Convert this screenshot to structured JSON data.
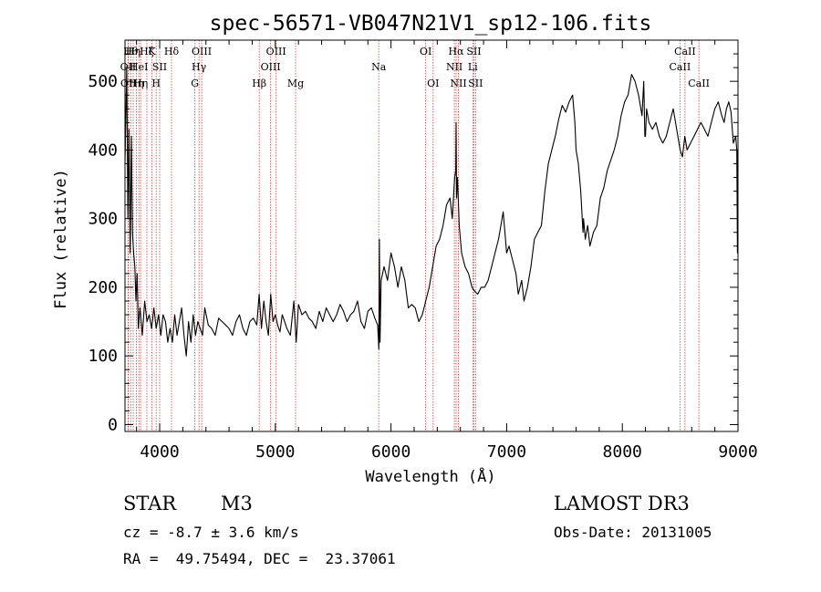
{
  "chart_data": {
    "type": "line",
    "title": "spec-56571-VB047N21V1_sp12-106.fits",
    "xlabel": "Wavelength (Å)",
    "ylabel": "Flux (relative)",
    "xlim": [
      3700,
      9000
    ],
    "ylim": [
      -10,
      560
    ],
    "xticks": [
      4000,
      5000,
      6000,
      7000,
      8000,
      9000
    ],
    "yticks": [
      0,
      100,
      200,
      300,
      400,
      500
    ],
    "series": [
      {
        "name": "flux",
        "x": [
          3700,
          3715,
          3725,
          3735,
          3745,
          3755,
          3765,
          3775,
          3785,
          3795,
          3805,
          3815,
          3830,
          3850,
          3870,
          3890,
          3910,
          3930,
          3950,
          3970,
          3990,
          4010,
          4030,
          4050,
          4070,
          4090,
          4110,
          4130,
          4150,
          4170,
          4190,
          4210,
          4230,
          4250,
          4270,
          4290,
          4310,
          4330,
          4350,
          4370,
          4390,
          4420,
          4450,
          4480,
          4510,
          4540,
          4570,
          4600,
          4630,
          4660,
          4690,
          4720,
          4750,
          4780,
          4810,
          4840,
          4860,
          4880,
          4900,
          4920,
          4940,
          4960,
          4980,
          5000,
          5020,
          5040,
          5060,
          5080,
          5100,
          5130,
          5160,
          5180,
          5200,
          5230,
          5260,
          5290,
          5320,
          5350,
          5380,
          5410,
          5440,
          5470,
          5500,
          5530,
          5560,
          5590,
          5620,
          5650,
          5680,
          5710,
          5740,
          5770,
          5800,
          5830,
          5860,
          5885,
          5895,
          5900,
          5905,
          5915,
          5940,
          5970,
          6000,
          6030,
          6060,
          6090,
          6120,
          6150,
          6180,
          6210,
          6240,
          6270,
          6300,
          6330,
          6360,
          6390,
          6420,
          6450,
          6480,
          6510,
          6530,
          6550,
          6560,
          6563,
          6567,
          6575,
          6590,
          6610,
          6640,
          6670,
          6700,
          6720,
          6750,
          6780,
          6810,
          6840,
          6870,
          6900,
          6930,
          6950,
          6970,
          7000,
          7020,
          7050,
          7080,
          7100,
          7130,
          7150,
          7180,
          7210,
          7240,
          7270,
          7300,
          7330,
          7360,
          7390,
          7420,
          7450,
          7480,
          7510,
          7540,
          7570,
          7590,
          7600,
          7620,
          7640,
          7660,
          7665,
          7680,
          7700,
          7720,
          7750,
          7780,
          7810,
          7840,
          7870,
          7900,
          7930,
          7960,
          7990,
          8020,
          8050,
          8080,
          8110,
          8140,
          8170,
          8185,
          8195,
          8200,
          8210,
          8230,
          8260,
          8290,
          8320,
          8350,
          8380,
          8410,
          8440,
          8470,
          8500,
          8520,
          8540,
          8560,
          8590,
          8620,
          8650,
          8680,
          8710,
          8740,
          8770,
          8800,
          8830,
          8860,
          8880,
          8900,
          8920,
          8940,
          8960,
          8980,
          8990,
          8995,
          8998
        ],
        "y": [
          380,
          520,
          300,
          430,
          250,
          420,
          280,
          250,
          230,
          180,
          220,
          140,
          170,
          130,
          180,
          150,
          160,
          140,
          170,
          140,
          160,
          130,
          160,
          150,
          120,
          140,
          120,
          160,
          130,
          150,
          170,
          130,
          100,
          150,
          120,
          160,
          130,
          150,
          140,
          130,
          170,
          145,
          140,
          130,
          155,
          150,
          145,
          140,
          130,
          150,
          160,
          140,
          130,
          150,
          155,
          145,
          190,
          140,
          180,
          150,
          130,
          190,
          150,
          160,
          145,
          135,
          160,
          150,
          140,
          130,
          180,
          120,
          175,
          160,
          165,
          155,
          150,
          140,
          165,
          150,
          170,
          160,
          150,
          160,
          175,
          165,
          150,
          160,
          165,
          180,
          150,
          140,
          165,
          170,
          155,
          145,
          110,
          270,
          120,
          210,
          230,
          210,
          250,
          230,
          200,
          230,
          210,
          170,
          175,
          170,
          150,
          160,
          180,
          200,
          230,
          260,
          270,
          290,
          320,
          330,
          300,
          360,
          370,
          440,
          330,
          360,
          290,
          250,
          230,
          220,
          200,
          195,
          190,
          200,
          200,
          210,
          230,
          250,
          270,
          290,
          310,
          250,
          260,
          240,
          220,
          190,
          210,
          180,
          200,
          230,
          270,
          280,
          290,
          340,
          380,
          400,
          420,
          445,
          465,
          455,
          470,
          480,
          440,
          400,
          380,
          340,
          280,
          300,
          270,
          290,
          260,
          280,
          290,
          330,
          345,
          370,
          385,
          400,
          420,
          450,
          470,
          480,
          510,
          500,
          480,
          450,
          500,
          420,
          420,
          460,
          440,
          430,
          440,
          420,
          410,
          420,
          440,
          460,
          430,
          400,
          390,
          420,
          400,
          410,
          420,
          430,
          440,
          430,
          420,
          440,
          460,
          470,
          450,
          440,
          460,
          470,
          455,
          410,
          420,
          400,
          250,
          400
        ]
      }
    ],
    "lines": [
      {
        "x": 3727,
        "label": "OII",
        "row": 1
      },
      {
        "x": 3730,
        "label": "OII",
        "row": 2
      },
      {
        "x": 3750,
        "label": "Hθ",
        "row": 0
      },
      {
        "x": 3771,
        "label": "Hη",
        "row": 0
      },
      {
        "x": 3798,
        "label": "Hη",
        "row": 2
      },
      {
        "x": 3820,
        "label": "HeI",
        "row": 1
      },
      {
        "x": 3835,
        "label": "Hη",
        "row": 2
      },
      {
        "x": 3889,
        "label": "Hζ",
        "row": 0
      },
      {
        "x": 3934,
        "label": "K",
        "row": 0
      },
      {
        "x": 3970,
        "label": "H",
        "row": 2
      },
      {
        "x": 4000,
        "label": "SII",
        "row": 1
      },
      {
        "x": 4102,
        "label": "Hδ",
        "row": 0
      },
      {
        "x": 4305,
        "label": "G",
        "row": 2
      },
      {
        "x": 4340,
        "label": "Hγ",
        "row": 1
      },
      {
        "x": 4363,
        "label": "OIII",
        "row": 0
      },
      {
        "x": 4861,
        "label": "Hβ",
        "row": 2
      },
      {
        "x": 4959,
        "label": "OIII",
        "row": 1
      },
      {
        "x": 5007,
        "label": "OIII",
        "row": 0
      },
      {
        "x": 5175,
        "label": "Mg",
        "row": 2
      },
      {
        "x": 5894,
        "label": "Na",
        "row": 1
      },
      {
        "x": 6300,
        "label": "OI",
        "row": 0
      },
      {
        "x": 6364,
        "label": "OI",
        "row": 2
      },
      {
        "x": 6548,
        "label": "NII",
        "row": 1
      },
      {
        "x": 6563,
        "label": "Hα",
        "row": 0
      },
      {
        "x": 6583,
        "label": "NII",
        "row": 2
      },
      {
        "x": 6707,
        "label": "Li",
        "row": 1
      },
      {
        "x": 6717,
        "label": "SII",
        "row": 0
      },
      {
        "x": 6731,
        "label": "SII",
        "row": 2
      },
      {
        "x": 8498,
        "label": "CaII",
        "row": 1
      },
      {
        "x": 8542,
        "label": "CaII",
        "row": 0
      },
      {
        "x": 8662,
        "label": "CaII",
        "row": 2
      }
    ]
  },
  "info": {
    "object_class": "STAR",
    "subclass": "M3",
    "survey": "LAMOST DR3",
    "cz": "cz = -8.7 ± 3.6 km/s",
    "obs_date": "Obs-Date: 20131005",
    "coords": "RA =  49.75494, DEC =  23.37061"
  }
}
